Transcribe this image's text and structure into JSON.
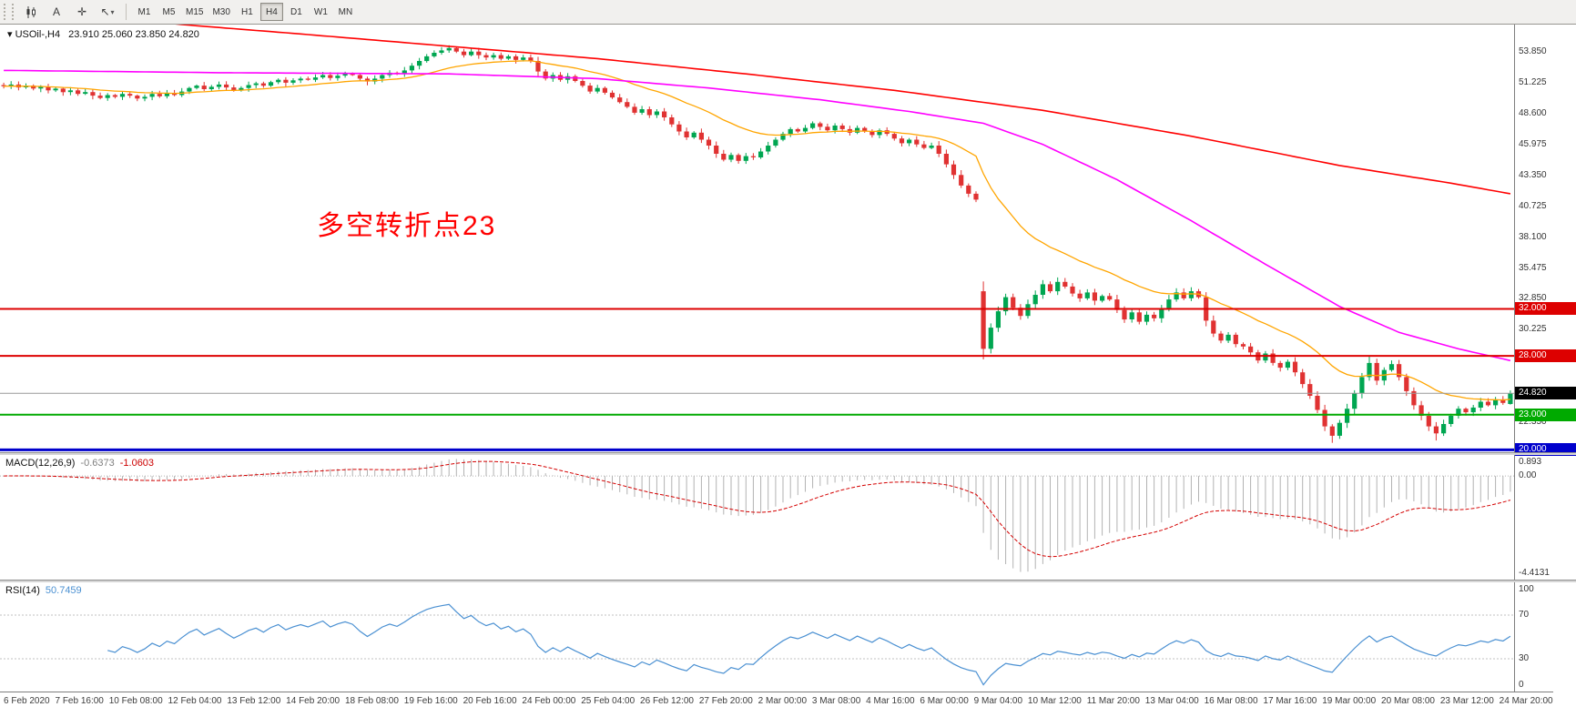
{
  "toolbar": {
    "tools": [
      {
        "name": "candlestick-chart-icon",
        "glyph": ""
      },
      {
        "name": "text-tool-icon",
        "glyph": "A"
      },
      {
        "name": "crosshair-icon",
        "glyph": "✛"
      },
      {
        "name": "objects-arrow-icon",
        "glyph": "↖",
        "caret": "▾"
      }
    ],
    "timeframes": [
      {
        "label": "M1"
      },
      {
        "label": "M5"
      },
      {
        "label": "M15"
      },
      {
        "label": "M30"
      },
      {
        "label": "H1"
      },
      {
        "label": "H4"
      },
      {
        "label": "D1"
      },
      {
        "label": "W1"
      },
      {
        "label": "MN"
      }
    ],
    "active_timeframe": "H4"
  },
  "chart": {
    "marker_glyph": "▾",
    "symbol_timeframe": "USOil-,H4",
    "ohlc_text": "23.910 25.060 23.850 24.820",
    "annotation": "多空转折点23",
    "annotation_color": "#ff0000"
  },
  "price_axis": {
    "labels": [
      "53.850",
      "51.225",
      "48.600",
      "45.975",
      "43.350",
      "40.725",
      "38.100",
      "35.475",
      "32.850",
      "30.225",
      "27.600",
      "24.975",
      "22.350"
    ]
  },
  "hlines": [
    {
      "label": "32.000",
      "price": 32.0,
      "color": "#dd0000",
      "width": 2
    },
    {
      "label": "28.000",
      "price": 28.0,
      "color": "#dd0000",
      "width": 2
    },
    {
      "label": "23.000",
      "price": 23.0,
      "color": "#00aa00",
      "width": 2
    },
    {
      "label": "20.000",
      "price": 20.0,
      "color": "#0000cc",
      "width": 3
    }
  ],
  "bid_line": {
    "label": "24.820",
    "price": 24.82,
    "line_color": "#999999",
    "tag_bg": "#000000"
  },
  "macd": {
    "name": "MACD(12,26,9)",
    "value_main": "-0.6373",
    "value_signal": "-1.0603",
    "axis_labels": [
      "0.893",
      "0.00",
      "-4.4131"
    ],
    "range": [
      -4.4131,
      0.893
    ]
  },
  "rsi": {
    "name": "RSI(14)",
    "value": "50.7459",
    "levels": [
      70,
      30
    ],
    "axis_labels": [
      "100",
      "70",
      "30",
      "0"
    ]
  },
  "time_axis": {
    "labels": [
      "6 Feb 2020",
      "7 Feb 16:00",
      "10 Feb 08:00",
      "12 Feb 04:00",
      "13 Feb 12:00",
      "14 Feb 20:00",
      "18 Feb 08:00",
      "19 Feb 16:00",
      "20 Feb 16:00",
      "24 Feb 00:00",
      "25 Feb 04:00",
      "26 Feb 12:00",
      "27 Feb 20:00",
      "2 Mar 00:00",
      "3 Mar 08:00",
      "4 Mar 16:00",
      "6 Mar 00:00",
      "9 Mar 04:00",
      "10 Mar 12:00",
      "11 Mar 20:00",
      "13 Mar 04:00",
      "16 Mar 08:00",
      "17 Mar 16:00",
      "19 Mar 00:00",
      "20 Mar 08:00",
      "23 Mar 12:00",
      "24 Mar 20:00"
    ]
  },
  "chart_data": {
    "type": "candlestick",
    "symbol": "USOil-",
    "timeframe": "H4",
    "price_range": [
      19.8,
      56.2
    ],
    "grid_step": 2.625,
    "closes": [
      50.95,
      51.1,
      50.85,
      51.0,
      50.75,
      50.9,
      50.6,
      50.75,
      50.45,
      50.6,
      50.3,
      50.45,
      50.15,
      49.95,
      50.2,
      50.05,
      50.3,
      50.15,
      49.9,
      50.05,
      50.3,
      50.1,
      50.35,
      50.2,
      50.5,
      50.8,
      51.0,
      50.7,
      50.9,
      51.1,
      50.85,
      50.6,
      50.8,
      51.05,
      51.2,
      51.0,
      51.3,
      51.5,
      51.25,
      51.45,
      51.6,
      51.5,
      51.7,
      51.9,
      51.65,
      51.85,
      52.0,
      51.9,
      51.6,
      51.35,
      51.6,
      51.9,
      52.1,
      52.0,
      52.3,
      52.7,
      53.1,
      53.5,
      53.8,
      54.0,
      54.2,
      53.9,
      53.6,
      53.9,
      53.6,
      53.4,
      53.6,
      53.3,
      53.5,
      53.2,
      53.4,
      53.1,
      52.2,
      51.6,
      51.9,
      51.5,
      51.8,
      51.4,
      51.0,
      50.5,
      50.8,
      50.4,
      50.0,
      49.6,
      49.2,
      48.7,
      49.0,
      48.5,
      48.8,
      48.3,
      47.7,
      47.1,
      46.6,
      47.0,
      46.4,
      45.9,
      45.2,
      44.7,
      45.1,
      44.6,
      45.0,
      44.9,
      45.4,
      45.9,
      46.4,
      46.9,
      47.3,
      47.1,
      47.4,
      47.8,
      47.5,
      47.2,
      47.6,
      47.3,
      47.0,
      47.4,
      47.1,
      46.8,
      47.2,
      46.9,
      46.5,
      46.1,
      46.4,
      46.0,
      45.7,
      45.9,
      45.2,
      44.3,
      43.4,
      42.5,
      41.8,
      41.3,
      28.6,
      30.4,
      31.8,
      33.0,
      32.1,
      31.4,
      32.4,
      33.2,
      34.1,
      33.5,
      34.3,
      33.9,
      33.3,
      32.9,
      33.4,
      32.7,
      33.1,
      32.8,
      31.9,
      31.1,
      31.7,
      30.9,
      31.5,
      31.2,
      32.0,
      32.8,
      33.4,
      32.9,
      33.5,
      33.0,
      31.0,
      29.9,
      29.3,
      29.8,
      29.0,
      28.8,
      28.3,
      27.6,
      28.2,
      27.4,
      27.0,
      27.5,
      26.6,
      25.6,
      24.6,
      23.4,
      22.0,
      21.2,
      22.3,
      23.5,
      24.8,
      26.2,
      27.4,
      25.9,
      26.8,
      27.3,
      26.2,
      25.0,
      23.8,
      22.9,
      22.0,
      21.4,
      22.2,
      22.9,
      23.5,
      23.2,
      23.6,
      24.1,
      23.8,
      24.3,
      24.0,
      24.82
    ],
    "open_overrides": {
      "0": 51.05,
      "132": 33.5,
      "203": 23.91
    },
    "high_overrides": {
      "184": 28.05,
      "203": 25.06
    },
    "low_overrides": {
      "132": 27.7,
      "179": 20.6,
      "193": 20.8,
      "203": 23.85
    },
    "ma_fast_period": 21,
    "ma_mid_points": [
      [
        0,
        52.3
      ],
      [
        30,
        52.1
      ],
      [
        60,
        52.0
      ],
      [
        80,
        51.6
      ],
      [
        95,
        50.8
      ],
      [
        110,
        49.8
      ],
      [
        122,
        48.8
      ],
      [
        132,
        47.8
      ],
      [
        140,
        46.0
      ],
      [
        150,
        43.0
      ],
      [
        160,
        39.5
      ],
      [
        170,
        35.8
      ],
      [
        180,
        32.2
      ],
      [
        188,
        30.0
      ],
      [
        196,
        28.6
      ],
      [
        203,
        27.6
      ]
    ],
    "ma_slow_points": [
      [
        0,
        57.8
      ],
      [
        24,
        56.2
      ],
      [
        40,
        55.4
      ],
      [
        61,
        54.3
      ],
      [
        80,
        53.3
      ],
      [
        100,
        52.0
      ],
      [
        120,
        50.6
      ],
      [
        140,
        48.9
      ],
      [
        160,
        46.7
      ],
      [
        180,
        44.2
      ],
      [
        195,
        42.7
      ],
      [
        203,
        41.8
      ]
    ],
    "colors": {
      "up": "#00a651",
      "down": "#e03232",
      "ma_fast": "#ffa500",
      "ma_mid": "#ff00ff",
      "ma_slow": "#ff0000",
      "macd_hist": "#b2b2b2",
      "macd_signal": "#d40000",
      "rsi": "#4a90d2",
      "grid_text": "#333333"
    }
  }
}
